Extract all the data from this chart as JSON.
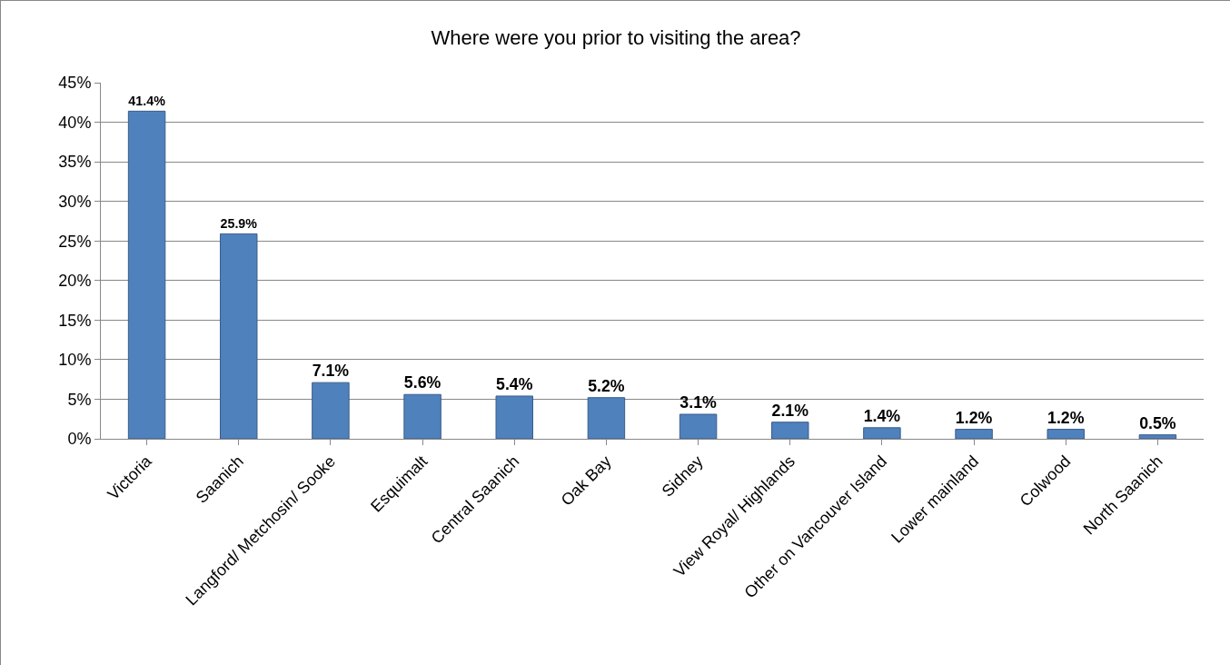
{
  "chart_data": {
    "type": "bar",
    "title": "Where were you prior to visiting the area?",
    "categories": [
      "Victoria",
      "Saanich",
      "Langford/ Metchosin/ Sooke",
      "Esquimalt",
      "Central Saanich",
      "Oak Bay",
      "Sidney",
      "View Royal/ Highlands",
      "Other on Vancouver Island",
      "Lower mainland",
      "Colwood",
      "North Saanich"
    ],
    "values": [
      41.4,
      25.9,
      7.1,
      5.6,
      5.4,
      5.2,
      3.1,
      2.1,
      1.4,
      1.2,
      1.2,
      0.5
    ],
    "value_labels": [
      "41.4%",
      "25.9%",
      "7.1%",
      "5.6%",
      "5.4%",
      "5.2%",
      "3.1%",
      "2.1%",
      "1.4%",
      "1.2%",
      "1.2%",
      "0.5%"
    ],
    "color": "#4f81bd",
    "ylim": [
      0,
      45
    ],
    "yticks": [
      {
        "value": 0,
        "label": "0%"
      },
      {
        "value": 5,
        "label": "5%"
      },
      {
        "value": 10,
        "label": "10%"
      },
      {
        "value": 15,
        "label": "15%"
      },
      {
        "value": 20,
        "label": "20%"
      },
      {
        "value": 25,
        "label": "25%"
      },
      {
        "value": 30,
        "label": "30%"
      },
      {
        "value": 35,
        "label": "35%"
      },
      {
        "value": 40,
        "label": "40%"
      },
      {
        "value": 45,
        "label": "45%"
      }
    ],
    "grid": "y",
    "legend": false
  }
}
